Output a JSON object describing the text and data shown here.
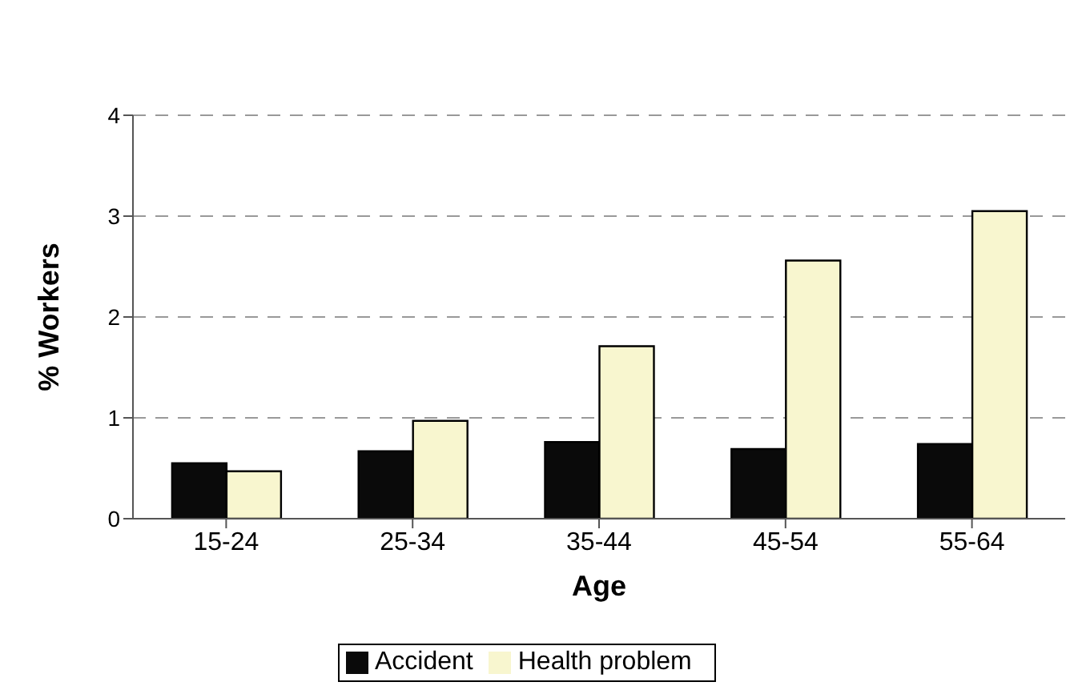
{
  "chart_data": {
    "type": "bar",
    "xlabel": "Age",
    "ylabel": "% Workers",
    "categories": [
      "15-24",
      "25-34",
      "35-44",
      "45-54",
      "55-64"
    ],
    "series": [
      {
        "name": "Accident",
        "color": "#0a0a0a",
        "values": [
          0.55,
          0.67,
          0.76,
          0.69,
          0.74
        ]
      },
      {
        "name": "Health problem",
        "color": "#f8f6cf",
        "values": [
          0.47,
          0.97,
          1.71,
          2.56,
          3.05
        ]
      }
    ],
    "ylim": [
      0,
      4
    ],
    "yticks": [
      0,
      1,
      2,
      3,
      4
    ],
    "grid": "y",
    "legend": "bottom"
  }
}
